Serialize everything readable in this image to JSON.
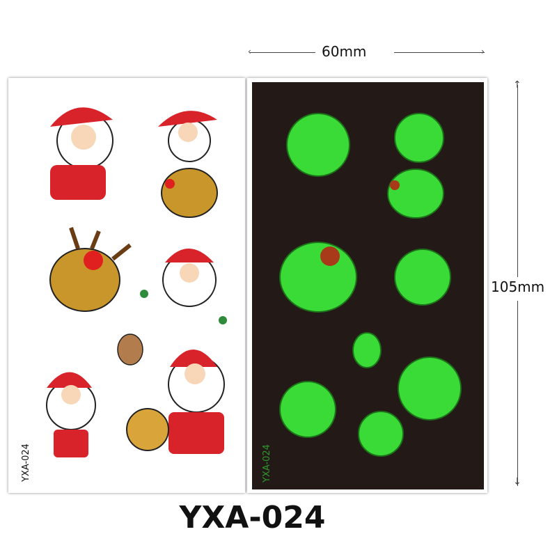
{
  "product": {
    "code": "YXA-024",
    "sheet_code": "YXA-024",
    "width_label": "60mm",
    "height_label": "105mm"
  },
  "colors": {
    "sheet_dark": "#231a17",
    "glow_green": "#3df03a",
    "santa_red": "#d8232a",
    "reindeer_brown": "#c8962a"
  },
  "icons": [
    "santa-icon",
    "reindeer-icon",
    "holly-icon"
  ]
}
